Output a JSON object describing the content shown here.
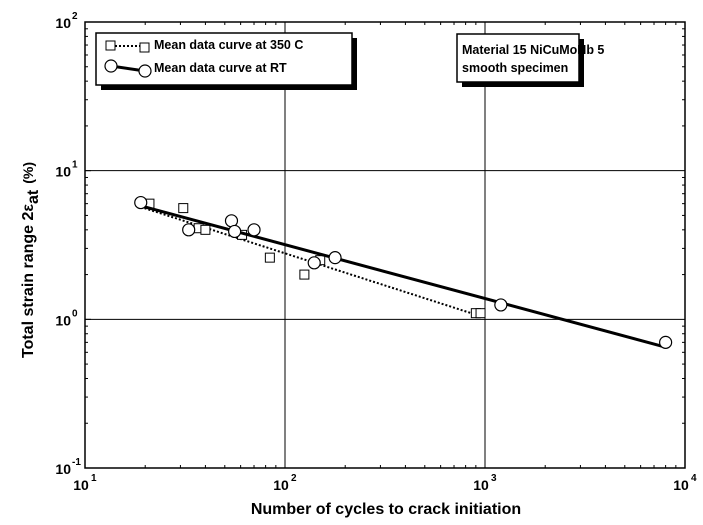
{
  "chart_data": {
    "type": "scatter",
    "xlabel": "Number of cycles to crack initiation",
    "ylabel": "Total strain range 2ε",
    "ylabel_sub": "at",
    "ylabel_unit": "(%)",
    "x_scale": "log",
    "y_scale": "log",
    "xlim": [
      10,
      10000
    ],
    "ylim": [
      0.1,
      100
    ],
    "x_ticks": [
      {
        "base": "10",
        "exp": "1",
        "value": 10
      },
      {
        "base": "10",
        "exp": "2",
        "value": 100
      },
      {
        "base": "10",
        "exp": "3",
        "value": 1000
      },
      {
        "base": "10",
        "exp": "4",
        "value": 10000
      }
    ],
    "y_ticks": [
      {
        "base": "10",
        "exp": "-1",
        "value": 0.1
      },
      {
        "base": "10",
        "exp": "0",
        "value": 1
      },
      {
        "base": "10",
        "exp": "1",
        "value": 10
      },
      {
        "base": "10",
        "exp": "2",
        "value": 100
      }
    ],
    "grid": true,
    "legend_position": "top-left",
    "series": [
      {
        "name": "Mean data curve at 350 C",
        "marker": "square",
        "line": "dotted",
        "points": [
          [
            21,
            6.0
          ],
          [
            31,
            5.6
          ],
          [
            37,
            4.1
          ],
          [
            40,
            4.0
          ],
          [
            61,
            3.7
          ],
          [
            84,
            2.6
          ],
          [
            125,
            2.0
          ],
          [
            150,
            2.5
          ],
          [
            900,
            1.1
          ],
          [
            950,
            1.1
          ]
        ],
        "curve": [
          [
            19,
            5.7
          ],
          [
            950,
            1.05
          ]
        ]
      },
      {
        "name": "Mean data curve at RT",
        "marker": "circle",
        "line": "solid",
        "points": [
          [
            19,
            6.1
          ],
          [
            33,
            4.0
          ],
          [
            54,
            4.6
          ],
          [
            56,
            3.9
          ],
          [
            70,
            4.0
          ],
          [
            140,
            2.4
          ],
          [
            178,
            2.6
          ],
          [
            1200,
            1.25
          ],
          [
            8000,
            0.7
          ]
        ],
        "curve": [
          [
            19,
            5.8
          ],
          [
            8000,
            0.65
          ]
        ]
      }
    ],
    "annotation": {
      "lines": [
        "Material 15 NiCuMoNb 5",
        "smooth specimen"
      ]
    }
  }
}
